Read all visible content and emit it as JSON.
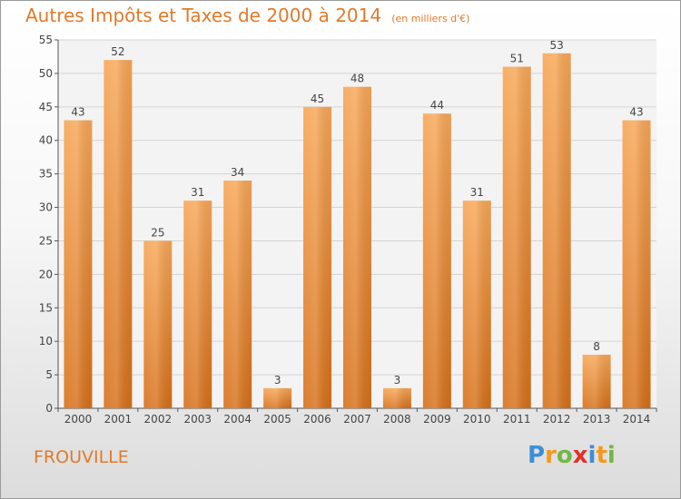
{
  "chart_data": {
    "type": "bar",
    "title": "Autres Impôts et Taxes de 2000 à 2014",
    "subtitle": "(en milliers d'€)",
    "categories": [
      "2000",
      "2001",
      "2002",
      "2003",
      "2004",
      "2005",
      "2006",
      "2007",
      "2008",
      "2009",
      "2010",
      "2011",
      "2012",
      "2013",
      "2014"
    ],
    "values": [
      43,
      52,
      25,
      31,
      34,
      3,
      45,
      48,
      3,
      44,
      31,
      51,
      53,
      8,
      43
    ],
    "ylim": [
      0,
      55
    ],
    "yticks": [
      0,
      5,
      10,
      15,
      20,
      25,
      30,
      35,
      40,
      45,
      50,
      55
    ],
    "grid": true,
    "xlabel": "",
    "ylabel": "",
    "bar_color": "#f0943e"
  },
  "commune": "FROUVILLE",
  "logo": {
    "letters": [
      "P",
      "r",
      "o",
      "x",
      "i",
      "t",
      "i"
    ],
    "colors": [
      "#3b8fd6",
      "#f39a1e",
      "#73b744",
      "#e0332c",
      "#3b8fd6",
      "#f39a1e",
      "#73b744"
    ]
  }
}
